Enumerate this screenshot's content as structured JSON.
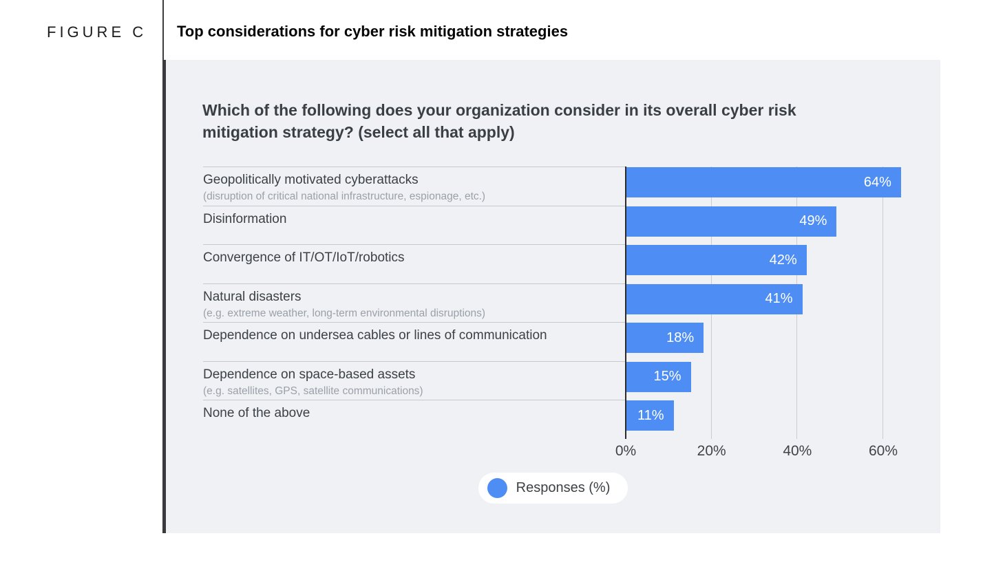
{
  "figure_label": "FIGURE C",
  "title": "Top considerations for cyber risk mitigation strategies",
  "colors": {
    "bar": "#4e8ef4",
    "panel_background": "#eff1f4",
    "accent_bar": "#3a3a3e",
    "bar_value_text": "#ffffff"
  },
  "chart_data": {
    "type": "bar",
    "orientation": "horizontal",
    "question": "Which of the following does your organization consider in its overall cyber risk mitigation strategy? (select all that apply)",
    "unit": "%",
    "grid": true,
    "xlim": [
      0,
      66
    ],
    "value_label_position": "inside-right",
    "rows": [
      {
        "label": "Geopolitically motivated cyberattacks",
        "sublabel": "(disruption of critical national infrastructure, espionage, etc.)",
        "value": 64,
        "value_label": "64%"
      },
      {
        "label": "Disinformation",
        "sublabel": "",
        "value": 49,
        "value_label": "49%"
      },
      {
        "label": "Convergence of IT/OT/IoT/robotics",
        "sublabel": "",
        "value": 42,
        "value_label": "42%"
      },
      {
        "label": "Natural disasters",
        "sublabel": "(e.g. extreme weather, long-term environmental disruptions)",
        "value": 41,
        "value_label": "41%"
      },
      {
        "label": "Dependence on undersea cables or lines of communication",
        "sublabel": "",
        "value": 18,
        "value_label": "18%"
      },
      {
        "label": "Dependence on space-based assets",
        "sublabel": "(e.g. satellites, GPS, satellite communications)",
        "value": 15,
        "value_label": "15%"
      },
      {
        "label": "None of the above",
        "sublabel": "",
        "value": 11,
        "value_label": "11%"
      }
    ],
    "x_ticks": [
      {
        "label": "0%",
        "value": 0
      },
      {
        "label": "20%",
        "value": 20
      },
      {
        "label": "40%",
        "value": 40
      },
      {
        "label": "60%",
        "value": 60
      }
    ],
    "legend": {
      "label": "Responses (%)",
      "position": "bottom-center",
      "color": "#4e8ef4"
    }
  }
}
